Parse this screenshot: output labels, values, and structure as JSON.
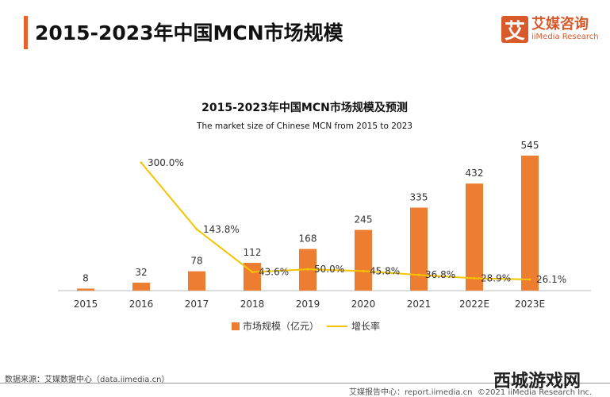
{
  "header": {
    "title": "2015-2023年中国MCN市场规模"
  },
  "logo": {
    "mark": "艾",
    "cn": "艾媒咨询",
    "en": "iiMedia Research"
  },
  "footer": {
    "source": "数据来源：艾媒数据中心（data.iimedia.cn）",
    "report": "艾媒报告中心：report.iimedia.cn",
    "copyright": "©2021 iiMedia Research Inc."
  },
  "watermark": "西城游戏网",
  "chart_data": {
    "type": "bar+line",
    "title": "2015-2023年中国MCN市场规模及预测",
    "subtitle": "The  market size of Chinese MCN from 2015 to 2023",
    "categories": [
      "2015",
      "2016",
      "2017",
      "2018",
      "2019",
      "2020",
      "2021",
      "2022E",
      "2023E"
    ],
    "series": [
      {
        "name": "市场规模（亿元）",
        "type": "bar",
        "color": "#ed7d31",
        "values": [
          8,
          32,
          78,
          112,
          168,
          245,
          335,
          432,
          545
        ],
        "labels": [
          "8",
          "32",
          "78",
          "112",
          "168",
          "245",
          "335",
          "432",
          "545"
        ]
      },
      {
        "name": "增长率",
        "type": "line",
        "color": "#f5c400",
        "values": [
          null,
          300.0,
          143.8,
          43.6,
          50.0,
          45.8,
          36.8,
          28.9,
          26.1
        ],
        "labels": [
          "",
          "300.0%",
          "143.8%",
          "43.6%",
          "50.0%",
          "45.8%",
          "36.8%",
          "28.9%",
          "26.1%"
        ]
      }
    ],
    "legend": "bottom",
    "grid": false
  }
}
